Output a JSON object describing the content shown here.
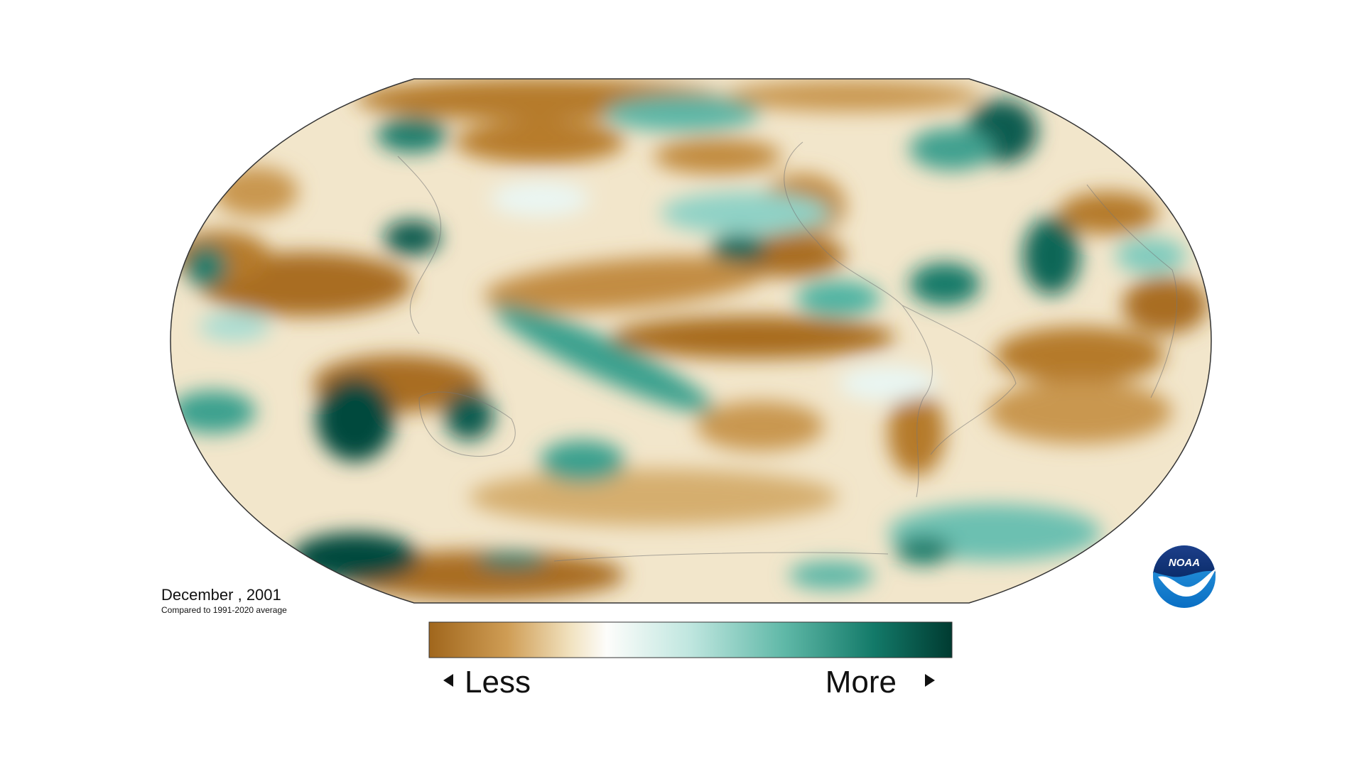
{
  "header": {
    "title": "December , 2001",
    "subtitle": "Compared to 1991-2020 average"
  },
  "legend": {
    "low_label": "Less",
    "high_label": "More"
  },
  "logo": {
    "text": "NOAA"
  }
}
